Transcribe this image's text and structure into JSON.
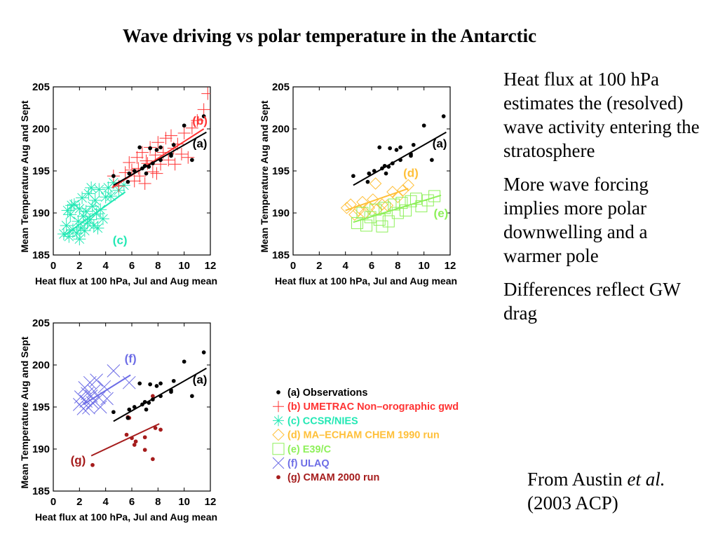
{
  "slide": {
    "title": "Wave driving vs polar temperature in the Antarctic",
    "bullets": [
      "Heat flux at 100 hPa estimates the (resolved) wave activity entering the stratosphere",
      "More wave forcing implies more polar downwelling and a warmer pole",
      "Differences reflect GW drag"
    ],
    "citation": {
      "prefix": "From Austin ",
      "italic": "et al.",
      "suffix": " (2003 ACP)"
    }
  },
  "colors": {
    "a": "#000000",
    "b": "#ff3333",
    "c": "#22e8b4",
    "d": "#ffc03a",
    "e": "#8ef05a",
    "f": "#6d6de6",
    "g": "#a51c1c"
  },
  "legend": [
    {
      "key": "a",
      "marker": "dot",
      "label": "(a) Observations"
    },
    {
      "key": "b",
      "marker": "plus",
      "label": "(b) UMETRAC Non–orographic gwd"
    },
    {
      "key": "c",
      "marker": "asterisk",
      "label": "(c) CCSR/NIES"
    },
    {
      "key": "d",
      "marker": "diamond",
      "label": "(d) MA–ECHAM CHEM 1990 run"
    },
    {
      "key": "e",
      "marker": "square",
      "label": "(e) E39/C"
    },
    {
      "key": "f",
      "marker": "cross",
      "label": "(f) ULAQ"
    },
    {
      "key": "g",
      "marker": "dot",
      "label": "(g) CMAM 2000 run"
    }
  ],
  "chart_data": [
    {
      "type": "scatter",
      "xlabel": "Heat flux at 100 hPa, Jul and Aug mean",
      "ylabel": "Mean Temperature Aug and Sept",
      "xlim": [
        0,
        12
      ],
      "ylim": [
        185,
        205
      ],
      "xticks": [
        0,
        2,
        4,
        6,
        8,
        10,
        12
      ],
      "yticks": [
        185,
        190,
        195,
        200,
        205
      ],
      "series": [
        {
          "key": "c",
          "marker": "asterisk",
          "label": "(c)",
          "label_xy": [
            5.1,
            186.3
          ],
          "fit": [
            [
              0.8,
              187.3
            ],
            [
              5.5,
              192.5
            ]
          ],
          "points": [
            [
              0.8,
              187.5
            ],
            [
              1.0,
              188.5
            ],
            [
              1.2,
              187.2
            ],
            [
              1.3,
              189.8
            ],
            [
              1.5,
              188.0
            ],
            [
              1.6,
              191.0
            ],
            [
              1.8,
              187.6
            ],
            [
              1.9,
              189.0
            ],
            [
              2.0,
              190.5
            ],
            [
              2.1,
              188.2
            ],
            [
              2.2,
              191.8
            ],
            [
              2.3,
              189.6
            ],
            [
              2.4,
              187.9
            ],
            [
              2.5,
              190.2
            ],
            [
              2.6,
              188.8
            ],
            [
              2.7,
              192.3
            ],
            [
              2.8,
              189.2
            ],
            [
              3.0,
              190.8
            ],
            [
              3.1,
              188.5
            ],
            [
              3.2,
              191.5
            ],
            [
              3.3,
              189.9
            ],
            [
              3.5,
              192.8
            ],
            [
              3.6,
              190.4
            ],
            [
              3.8,
              189.3
            ],
            [
              4.0,
              191.9
            ],
            [
              4.2,
              193.0
            ],
            [
              4.4,
              192.0
            ],
            [
              4.6,
              193.6
            ],
            [
              5.0,
              192.7
            ],
            [
              5.4,
              193.3
            ],
            [
              1.1,
              190.3
            ],
            [
              1.4,
              190.9
            ],
            [
              2.0,
              186.9
            ],
            [
              2.9,
              193.0
            ],
            [
              3.4,
              188.2
            ]
          ]
        },
        {
          "key": "b",
          "marker": "plus",
          "label": "(b)",
          "label_xy": [
            11.2,
            200.5
          ],
          "fit": [
            [
              4.5,
              193.0
            ],
            [
              11.5,
              200.0
            ]
          ],
          "points": [
            [
              4.6,
              194.4
            ],
            [
              5.0,
              193.2
            ],
            [
              5.5,
              194.8
            ],
            [
              5.8,
              196.0
            ],
            [
              6.0,
              195.1
            ],
            [
              6.2,
              193.8
            ],
            [
              6.4,
              196.6
            ],
            [
              6.6,
              194.4
            ],
            [
              6.8,
              197.2
            ],
            [
              7.0,
              193.5
            ],
            [
              7.2,
              195.9
            ],
            [
              7.4,
              197.8
            ],
            [
              7.6,
              194.9
            ],
            [
              7.8,
              196.9
            ],
            [
              8.0,
              198.4
            ],
            [
              8.2,
              195.8
            ],
            [
              8.4,
              197.2
            ],
            [
              8.6,
              198.9
            ],
            [
              8.8,
              196.3
            ],
            [
              9.0,
              199.2
            ],
            [
              9.2,
              197.7
            ],
            [
              9.5,
              198.2
            ],
            [
              9.8,
              197.0
            ],
            [
              10.0,
              199.5
            ],
            [
              10.3,
              196.6
            ],
            [
              10.6,
              200.1
            ],
            [
              11.0,
              201.0
            ],
            [
              11.5,
              202.3
            ],
            [
              11.8,
              204.2
            ],
            [
              6.5,
              195.3
            ],
            [
              7.1,
              196.2
            ],
            [
              7.9,
              194.7
            ],
            [
              9.3,
              195.8
            ]
          ]
        },
        {
          "key": "a",
          "marker": "dot",
          "label": "(a)",
          "label_xy": [
            11.2,
            197.8
          ],
          "fit": [
            [
              4.6,
              193.3
            ],
            [
              11.7,
              199.6
            ]
          ],
          "points": [
            [
              4.6,
              194.4
            ],
            [
              5.7,
              193.7
            ],
            [
              5.8,
              194.7
            ],
            [
              6.2,
              195.0
            ],
            [
              6.6,
              197.8
            ],
            [
              6.8,
              195.3
            ],
            [
              7.0,
              195.6
            ],
            [
              7.1,
              194.7
            ],
            [
              7.3,
              195.5
            ],
            [
              7.4,
              197.7
            ],
            [
              7.6,
              195.9
            ],
            [
              7.9,
              197.5
            ],
            [
              8.2,
              197.8
            ],
            [
              8.2,
              196.3
            ],
            [
              9.0,
              196.8
            ],
            [
              9.0,
              197.0
            ],
            [
              9.2,
              198.1
            ],
            [
              10.0,
              200.4
            ],
            [
              10.6,
              196.3
            ],
            [
              11.5,
              201.5
            ]
          ]
        }
      ]
    },
    {
      "type": "scatter",
      "xlabel": "Heat flux at 100 hPa, Jul and Aug mean",
      "ylabel": "Mean Temperature Aug and Sept",
      "xlim": [
        0,
        12
      ],
      "ylim": [
        185,
        205
      ],
      "xticks": [
        0,
        2,
        4,
        6,
        8,
        10,
        12
      ],
      "yticks": [
        185,
        190,
        195,
        200,
        205
      ],
      "series": [
        {
          "key": "d",
          "marker": "diamond",
          "label": "(d)",
          "label_xy": [
            9.0,
            194.3
          ],
          "fit": [
            [
              4.0,
              190.3
            ],
            [
              8.8,
              192.9
            ]
          ],
          "points": [
            [
              4.1,
              190.6
            ],
            [
              4.4,
              191.0
            ],
            [
              4.7,
              189.8
            ],
            [
              5.0,
              190.3
            ],
            [
              5.3,
              191.3
            ],
            [
              5.5,
              190.0
            ],
            [
              5.8,
              190.6
            ],
            [
              6.1,
              191.6
            ],
            [
              6.4,
              190.4
            ],
            [
              6.8,
              191.0
            ],
            [
              7.2,
              190.9
            ],
            [
              7.6,
              192.5
            ],
            [
              8.0,
              191.9
            ],
            [
              8.4,
              192.7
            ],
            [
              8.8,
              193.3
            ],
            [
              6.3,
              193.5
            ]
          ]
        },
        {
          "key": "e",
          "marker": "square",
          "label": "(e)",
          "label_xy": [
            11.3,
            189.5
          ],
          "fit": [
            [
              4.6,
              188.9
            ],
            [
              11.3,
              192.1
            ]
          ],
          "points": [
            [
              4.9,
              188.8
            ],
            [
              5.3,
              190.0
            ],
            [
              5.6,
              188.5
            ],
            [
              5.9,
              189.5
            ],
            [
              6.3,
              190.4
            ],
            [
              6.6,
              189.2
            ],
            [
              7.0,
              190.6
            ],
            [
              7.3,
              189.0
            ],
            [
              7.7,
              191.0
            ],
            [
              8.0,
              190.0
            ],
            [
              8.3,
              191.2
            ],
            [
              8.6,
              190.3
            ],
            [
              9.0,
              191.4
            ],
            [
              9.4,
              191.7
            ],
            [
              9.8,
              190.8
            ],
            [
              10.3,
              191.5
            ],
            [
              10.8,
              192.0
            ],
            [
              6.8,
              188.4
            ]
          ]
        },
        {
          "key": "a",
          "marker": "dot",
          "label": "(a)",
          "label_xy": [
            11.2,
            197.8
          ],
          "fit": [
            [
              4.6,
              193.3
            ],
            [
              11.7,
              199.6
            ]
          ],
          "points": [
            [
              4.6,
              194.4
            ],
            [
              5.7,
              193.7
            ],
            [
              5.8,
              194.7
            ],
            [
              6.2,
              195.0
            ],
            [
              6.6,
              197.8
            ],
            [
              6.8,
              195.3
            ],
            [
              7.0,
              195.6
            ],
            [
              7.1,
              194.7
            ],
            [
              7.3,
              195.5
            ],
            [
              7.4,
              197.7
            ],
            [
              7.6,
              195.9
            ],
            [
              7.9,
              197.5
            ],
            [
              8.2,
              197.8
            ],
            [
              8.2,
              196.3
            ],
            [
              9.0,
              196.8
            ],
            [
              9.0,
              197.0
            ],
            [
              9.2,
              198.1
            ],
            [
              10.0,
              200.4
            ],
            [
              10.6,
              196.3
            ],
            [
              11.5,
              201.5
            ]
          ]
        }
      ]
    },
    {
      "type": "scatter",
      "xlabel": "Heat flux at 100 hPa, Jul and Aug mean",
      "ylabel": "Mean Temperature Aug and Sept",
      "xlim": [
        0,
        12
      ],
      "ylim": [
        185,
        205
      ],
      "xticks": [
        0,
        2,
        4,
        6,
        8,
        10,
        12
      ],
      "yticks": [
        185,
        190,
        195,
        200,
        205
      ],
      "series": [
        {
          "key": "f",
          "marker": "cross",
          "label": "(f)",
          "label_xy": [
            5.9,
            200.3
          ],
          "fit": [
            [
              2.3,
              195.3
            ],
            [
              5.9,
              198.8
            ]
          ],
          "points": [
            [
              2.0,
              195.3
            ],
            [
              2.1,
              196.2
            ],
            [
              2.3,
              194.8
            ],
            [
              2.4,
              197.3
            ],
            [
              2.5,
              195.7
            ],
            [
              2.6,
              196.6
            ],
            [
              2.7,
              194.9
            ],
            [
              2.8,
              197.9
            ],
            [
              3.0,
              195.5
            ],
            [
              3.1,
              196.9
            ],
            [
              3.3,
              198.2
            ],
            [
              3.5,
              196.1
            ],
            [
              3.6,
              195.0
            ],
            [
              3.9,
              197.4
            ],
            [
              4.1,
              196.0
            ],
            [
              4.6,
              199.3
            ],
            [
              5.8,
              197.9
            ],
            [
              2.9,
              196.3
            ]
          ]
        },
        {
          "key": "g",
          "marker": "dot",
          "label": "(g)",
          "label_xy": [
            1.9,
            188.2
          ],
          "fit": [
            [
              2.9,
              189.2
            ],
            [
              8.1,
              193.0
            ]
          ],
          "points": [
            [
              3.0,
              188.1
            ],
            [
              5.6,
              191.7
            ],
            [
              5.7,
              193.8
            ],
            [
              5.8,
              193.7
            ],
            [
              6.0,
              191.3
            ],
            [
              6.2,
              190.5
            ],
            [
              6.3,
              190.9
            ],
            [
              7.0,
              189.9
            ],
            [
              7.0,
              191.4
            ],
            [
              7.6,
              188.8
            ],
            [
              7.8,
              192.5
            ],
            [
              8.2,
              192.3
            ],
            [
              7.6,
              196.3
            ]
          ]
        },
        {
          "key": "a",
          "marker": "dot",
          "label": "(a)",
          "label_xy": [
            11.2,
            197.8
          ],
          "fit": [
            [
              4.6,
              193.3
            ],
            [
              11.7,
              199.6
            ]
          ],
          "points": [
            [
              4.6,
              194.4
            ],
            [
              5.7,
              193.7
            ],
            [
              5.8,
              194.7
            ],
            [
              6.2,
              195.0
            ],
            [
              6.6,
              197.8
            ],
            [
              6.8,
              195.3
            ],
            [
              7.0,
              195.6
            ],
            [
              7.1,
              194.7
            ],
            [
              7.3,
              195.5
            ],
            [
              7.4,
              197.7
            ],
            [
              7.6,
              195.9
            ],
            [
              7.9,
              197.5
            ],
            [
              8.2,
              197.8
            ],
            [
              8.2,
              196.3
            ],
            [
              9.0,
              196.8
            ],
            [
              9.0,
              197.0
            ],
            [
              9.2,
              198.1
            ],
            [
              10.0,
              200.4
            ],
            [
              10.6,
              196.3
            ],
            [
              11.5,
              201.5
            ]
          ]
        }
      ]
    }
  ]
}
